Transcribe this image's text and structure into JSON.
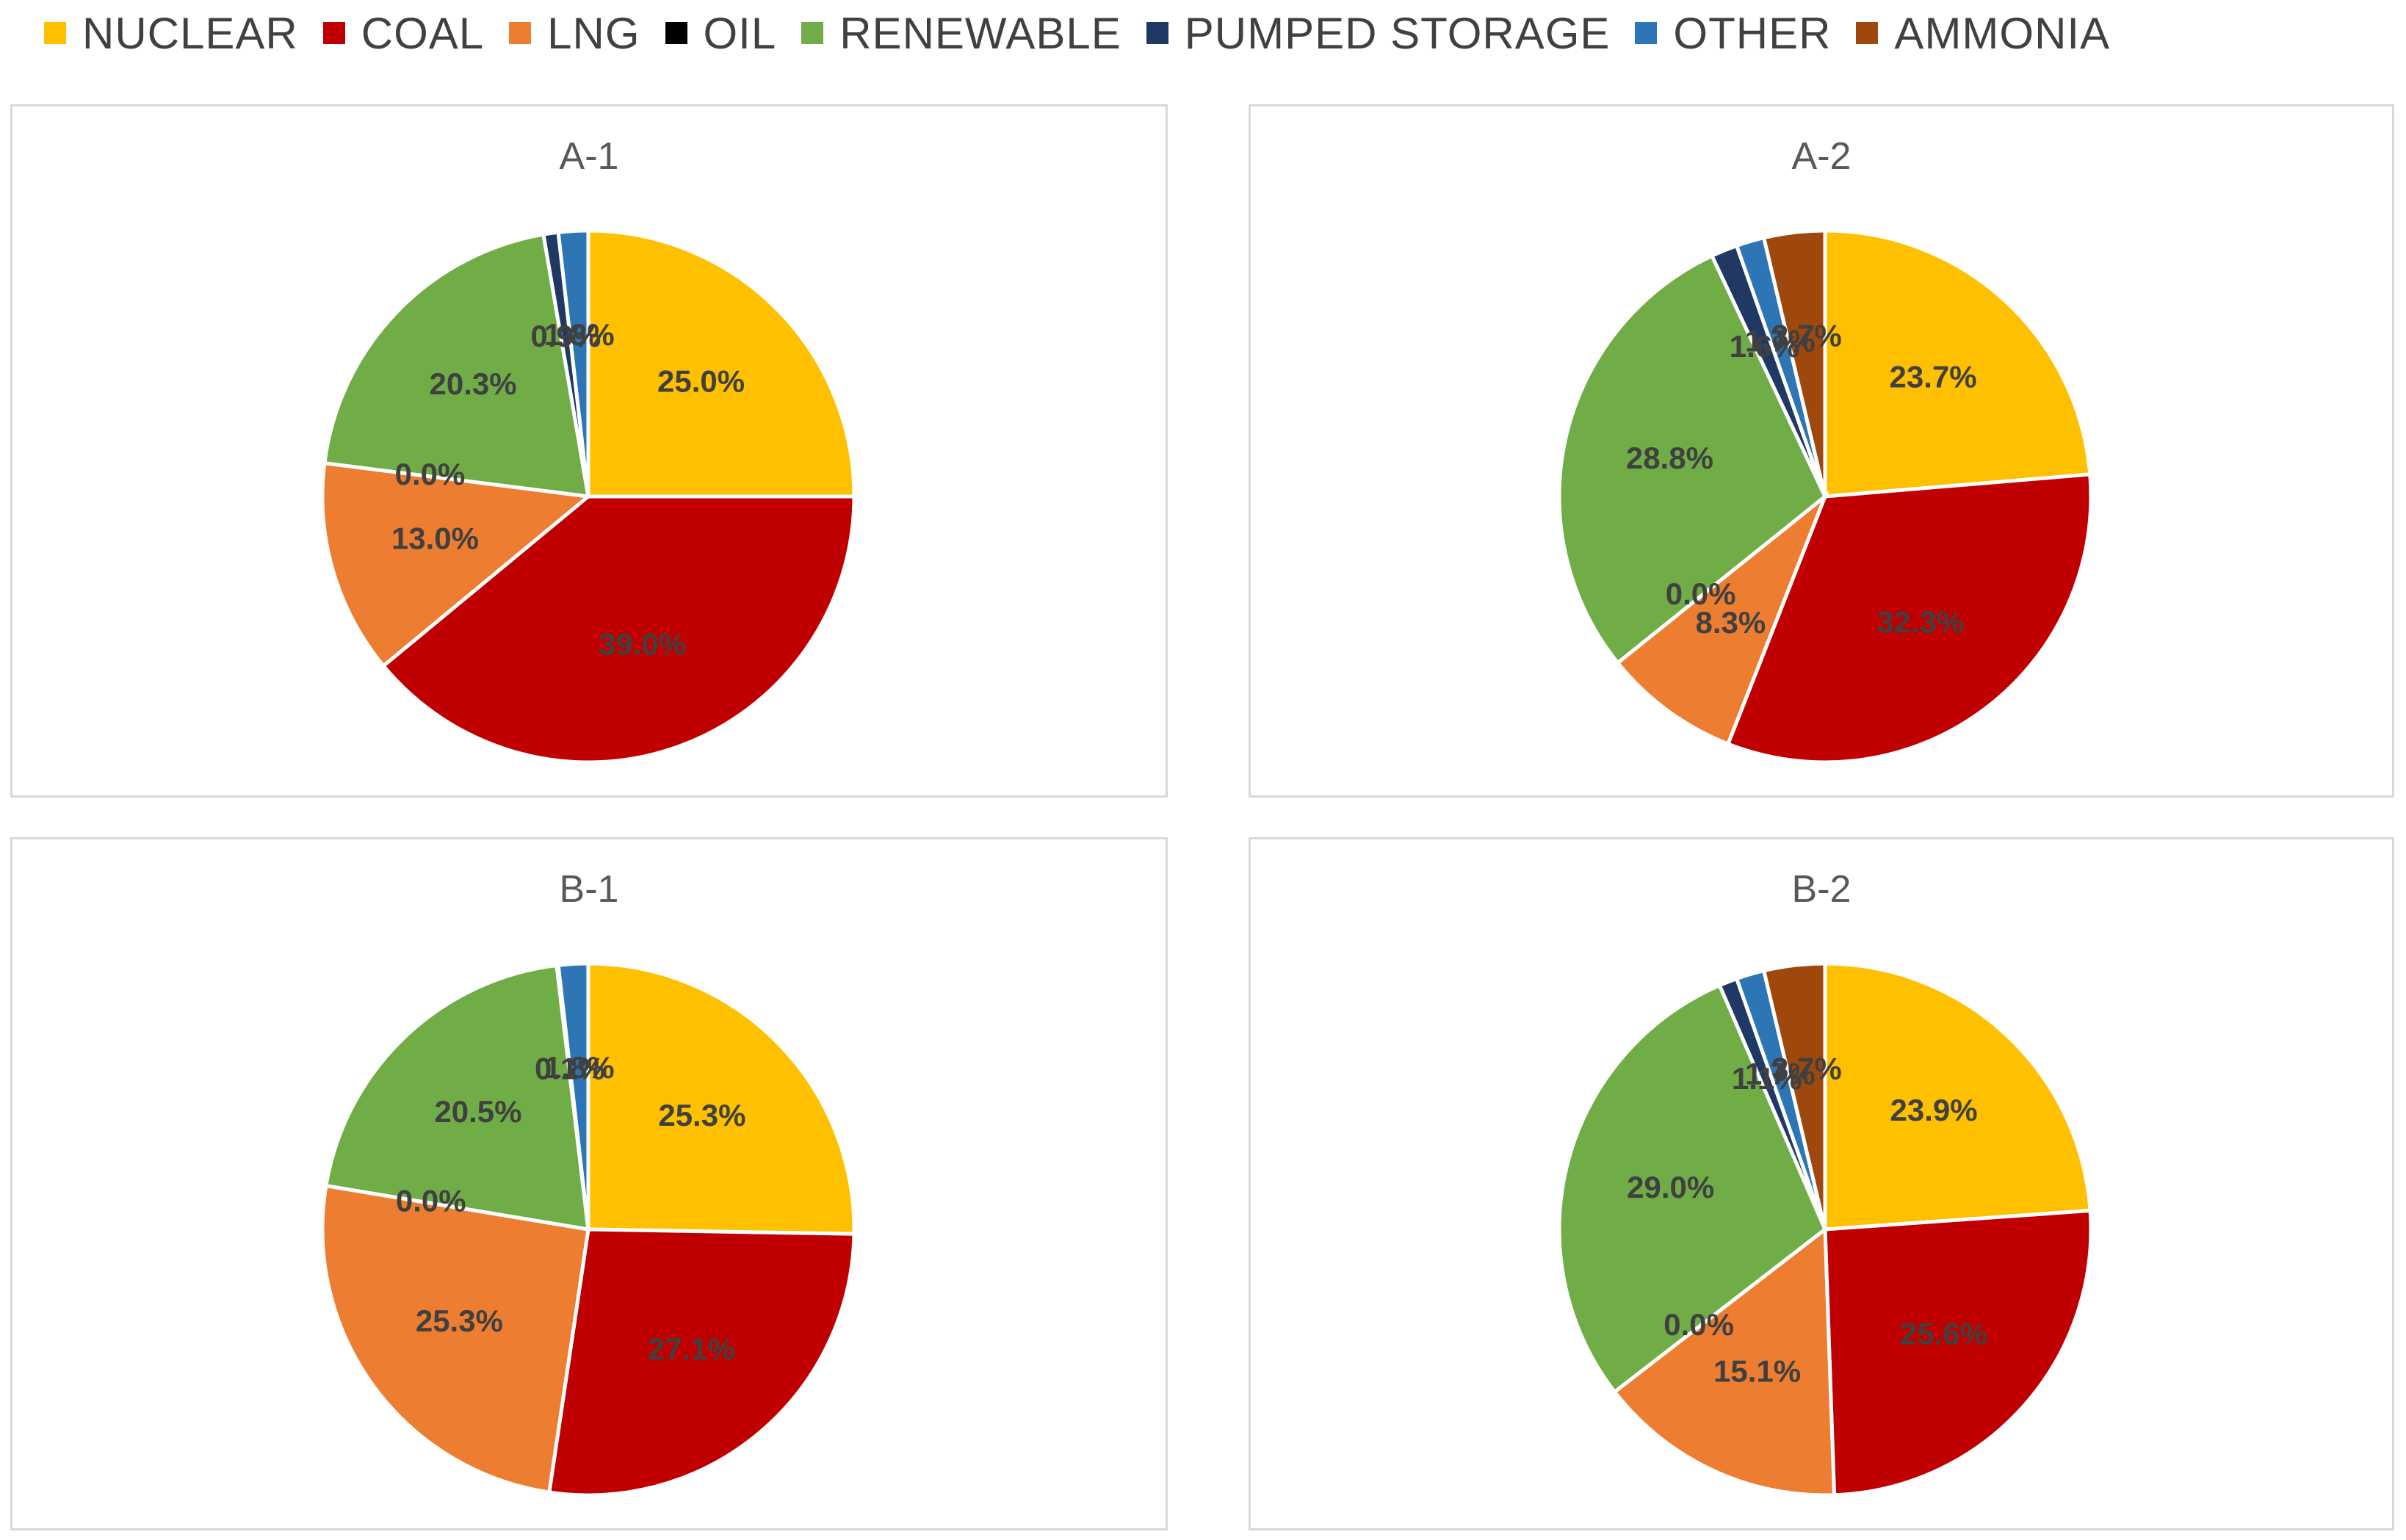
{
  "categories": [
    "NUCLEAR",
    "COAL",
    "LNG",
    "OIL",
    "RENEWABLE",
    "PUMPED STORAGE",
    "OTHER",
    "AMMONIA"
  ],
  "colors": [
    "#ffc000",
    "#c00000",
    "#ed7d31",
    "#000000",
    "#70ad47",
    "#1f3864",
    "#2e75b6",
    "#9e480e"
  ],
  "chart_data": [
    {
      "type": "pie",
      "title": "A-1",
      "categories": [
        "NUCLEAR",
        "COAL",
        "LNG",
        "OIL",
        "RENEWABLE",
        "PUMPED STORAGE",
        "OTHER",
        "AMMONIA"
      ],
      "values": [
        25.0,
        39.0,
        13.0,
        0.0,
        20.3,
        0.9,
        1.8,
        0.0
      ],
      "labels": [
        "25.0%",
        "39.0%",
        "13.0%",
        "0.0%",
        "20.3%",
        "0.9%",
        "1.8%",
        null
      ]
    },
    {
      "type": "pie",
      "title": "A-2",
      "categories": [
        "NUCLEAR",
        "COAL",
        "LNG",
        "OIL",
        "RENEWABLE",
        "PUMPED STORAGE",
        "OTHER",
        "AMMONIA"
      ],
      "values": [
        23.7,
        32.3,
        8.3,
        0.0,
        28.8,
        1.6,
        1.7,
        3.7
      ],
      "labels": [
        "23.7%",
        "32.3%",
        "8.3%",
        "0.0%",
        "28.8%",
        "1.6%",
        "1.7%",
        "3.7%"
      ]
    },
    {
      "type": "pie",
      "title": "B-1",
      "categories": [
        "NUCLEAR",
        "COAL",
        "LNG",
        "OIL",
        "RENEWABLE",
        "PUMPED STORAGE",
        "OTHER",
        "AMMONIA"
      ],
      "values": [
        25.3,
        27.1,
        25.3,
        0.0,
        20.5,
        0.1,
        1.8,
        0.0
      ],
      "labels": [
        "25.3%",
        "27.1%",
        "25.3%",
        "0.0%",
        "20.5%",
        "0.1%",
        "1.8%",
        null
      ]
    },
    {
      "type": "pie",
      "title": "B-2",
      "categories": [
        "NUCLEAR",
        "COAL",
        "LNG",
        "OIL",
        "RENEWABLE",
        "PUMPED STORAGE",
        "OTHER",
        "AMMONIA"
      ],
      "values": [
        23.9,
        25.6,
        15.1,
        0.0,
        29.0,
        1.1,
        1.7,
        3.7
      ],
      "labels": [
        "23.9%",
        "25.6%",
        "15.1%",
        "0.0%",
        "29.0%",
        "1.1%",
        "1.7%",
        "3.7%"
      ]
    }
  ]
}
